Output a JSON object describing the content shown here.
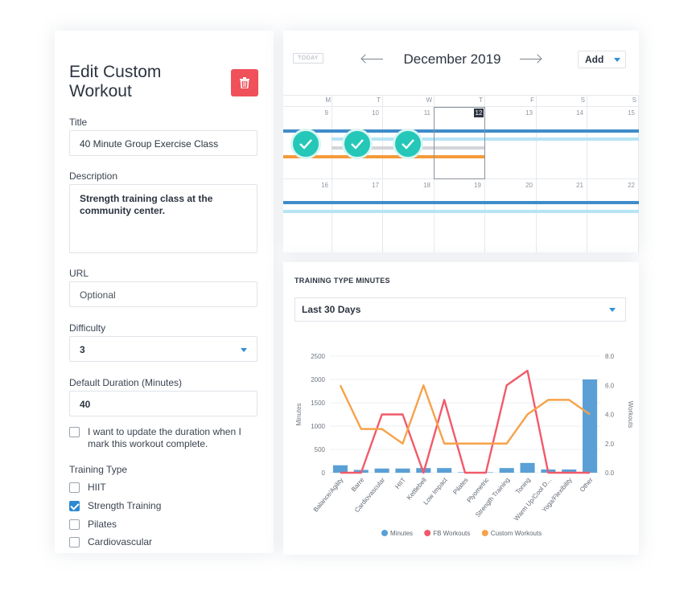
{
  "form": {
    "heading": "Edit Custom Workout",
    "title_label": "Title",
    "title_value": "40 Minute Group Exercise Class",
    "description_label": "Description",
    "description_value": "Strength training class at the community center.",
    "url_label": "URL",
    "url_placeholder": "Optional",
    "difficulty_label": "Difficulty",
    "difficulty_value": "3",
    "duration_label": "Default Duration (Minutes)",
    "duration_value": "40",
    "update_duration_label": "I want to update the duration when I mark this workout complete.",
    "update_duration_checked": false,
    "training_type_label": "Training Type",
    "training_types": [
      {
        "label": "HIIT",
        "checked": false
      },
      {
        "label": "Strength Training",
        "checked": true
      },
      {
        "label": "Pilates",
        "checked": false
      },
      {
        "label": "Cardiovascular",
        "checked": false
      }
    ],
    "delete_icon": "trash-icon",
    "accent_color": "#f0505a"
  },
  "calendar": {
    "today_label": "TODAY",
    "month": "December 2019",
    "add_label": "Add",
    "weekdays": [
      "M",
      "T",
      "W",
      "T",
      "F",
      "S",
      "S"
    ],
    "week1": [
      "9",
      "10",
      "11",
      "12",
      "13",
      "14",
      "15"
    ],
    "week2": [
      "16",
      "17",
      "18",
      "19",
      "20",
      "21",
      "22"
    ],
    "today": "12",
    "completed_days": [
      "9",
      "10",
      "11"
    ]
  },
  "chart_panel": {
    "title": "TRAINING TYPE MINUTES",
    "range_value": "Last 30 Days"
  },
  "chart_data": {
    "type": "bar",
    "categories": [
      "Balance/Agility",
      "Barre",
      "Cardiovascular",
      "HIIT",
      "Kettlebell",
      "Low Impact",
      "Pilates",
      "Plyometric",
      "Strength Training",
      "Toning",
      "Warm Up/Cool D...",
      "Yoga/Flexibility",
      "Other"
    ],
    "ylabel": "Minutes",
    "y2label": "Workouts",
    "ylim": [
      0,
      2500
    ],
    "y2lim": [
      0,
      8
    ],
    "yticks": [
      "0",
      "500",
      "1000",
      "1500",
      "2000",
      "2500"
    ],
    "y2ticks": [
      "0.0",
      "2.0",
      "4.0",
      "6.0",
      "8.0"
    ],
    "series": [
      {
        "name": "Minutes",
        "kind": "bar",
        "axis": "left",
        "color": "#5aa0d6",
        "values": [
          160,
          60,
          90,
          90,
          100,
          100,
          10,
          10,
          100,
          210,
          70,
          70,
          2000
        ]
      },
      {
        "name": "FB Workouts",
        "kind": "line",
        "axis": "right",
        "color": "#f25a6a",
        "values": [
          0,
          0,
          4,
          4,
          0,
          5,
          0,
          0,
          6,
          7,
          0,
          0,
          0
        ]
      },
      {
        "name": "Custom Workouts",
        "kind": "line",
        "axis": "right",
        "color": "#f7a24a",
        "values": [
          6,
          3,
          3,
          2,
          6,
          2,
          2,
          2,
          2,
          4,
          5,
          5,
          4
        ]
      }
    ],
    "legend_position": "bottom"
  }
}
